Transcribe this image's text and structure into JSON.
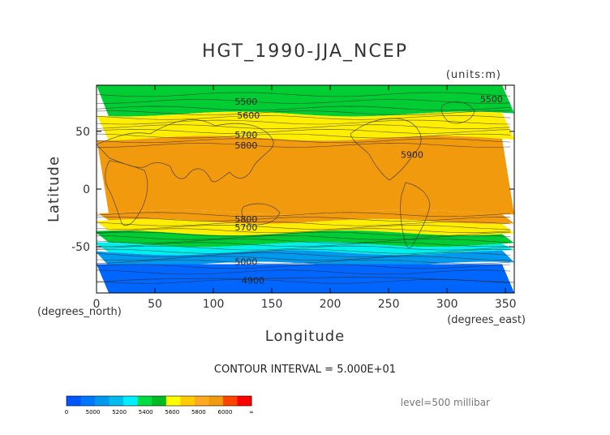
{
  "chart_data": {
    "type": "contour",
    "title": "HGT_1990-JJA_NCEP",
    "units_label": "(units:m)",
    "xlabel": "Longitude",
    "ylabel": "Latitude",
    "x_unit_label": "(degrees_east)",
    "y_unit_label": "(degrees_north)",
    "xlim": [
      0,
      357.5
    ],
    "ylim": [
      -90,
      90
    ],
    "x_ticks": [
      0,
      50,
      100,
      150,
      200,
      250,
      300,
      350
    ],
    "y_ticks": [
      50,
      0,
      -50
    ],
    "contour_interval_text": "CONTOUR INTERVAL = 5.000E+01",
    "level_text": "level=500 millibar",
    "contour_labels": [
      {
        "text": "5500",
        "lon": 128,
        "lat": 76
      },
      {
        "text": "5600",
        "lon": 130,
        "lat": 64
      },
      {
        "text": "5700",
        "lon": 128,
        "lat": 47
      },
      {
        "text": "5800",
        "lon": 128,
        "lat": 38
      },
      {
        "text": "5500",
        "lon": 338,
        "lat": 78
      },
      {
        "text": "5900",
        "lon": 270,
        "lat": 30
      },
      {
        "text": "5800",
        "lon": 128,
        "lat": -26
      },
      {
        "text": "5700",
        "lon": 128,
        "lat": -33
      },
      {
        "text": "5000",
        "lon": 128,
        "lat": -63
      },
      {
        "text": "4900",
        "lon": 134,
        "lat": -79
      }
    ],
    "fill_bands": [
      {
        "lat_from": 90,
        "lat_to": 65,
        "level": "5400-5600",
        "color": "#00cc33"
      },
      {
        "lat_from": 65,
        "lat_to": 44,
        "level": "5600-5800",
        "color": "#ffee00"
      },
      {
        "lat_from": 44,
        "lat_to": -20,
        "level": "5800-6000",
        "color": "#f29a0e"
      },
      {
        "lat_from": -20,
        "lat_to": -28,
        "level": "5800-6000",
        "color": "#f29a0e"
      },
      {
        "lat_from": -28,
        "lat_to": -38,
        "level": "5600-5800",
        "color": "#ffee00"
      },
      {
        "lat_from": -38,
        "lat_to": -48,
        "level": "5400-5600",
        "color": "#00cc33"
      },
      {
        "lat_from": -48,
        "lat_to": -55,
        "level": "5200-5400",
        "color": "#00f0ee"
      },
      {
        "lat_from": -55,
        "lat_to": -65,
        "level": "5000-5200",
        "color": "#0099ee"
      },
      {
        "lat_from": -65,
        "lat_to": -90,
        "level": "0-5000",
        "color": "#0066ff"
      }
    ]
  },
  "colorbar": {
    "labels": [
      "0",
      "5000",
      "5200",
      "5400",
      "5600",
      "5800",
      "6000",
      "∞"
    ],
    "colors": [
      "#0055ff",
      "#0077ff",
      "#0099ee",
      "#00bbee",
      "#00eeff",
      "#00dd44",
      "#00bb22",
      "#ffff00",
      "#ffcc00",
      "#ffaa22",
      "#f29a0e",
      "#ff4400",
      "#ff0000"
    ]
  }
}
